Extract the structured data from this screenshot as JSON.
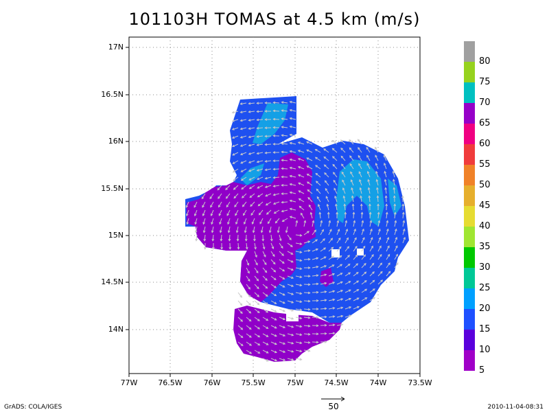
{
  "title": "101103H TOMAS at 4.5 km (m/s)",
  "y_axis_labels": [
    "17N",
    "16.5N",
    "16N",
    "15.5N",
    "15N",
    "14.5N",
    "14N"
  ],
  "x_axis_labels": [
    "77W",
    "76.5W",
    "76W",
    "75.5W",
    "75W",
    "74.5W",
    "74W",
    "73.5W"
  ],
  "colorbar": {
    "labels": [
      "80",
      "75",
      "70",
      "65",
      "60",
      "55",
      "50",
      "45",
      "40",
      "35",
      "30",
      "25",
      "20",
      "15",
      "10",
      "5"
    ],
    "colors": [
      "#a0a0a0",
      "#96d21e",
      "#00c0c0",
      "#9600c8",
      "#f00082",
      "#f03c3c",
      "#f08228",
      "#e6af2d",
      "#e6dc32",
      "#a0e632",
      "#00c800",
      "#00c896",
      "#00a0ff",
      "#1e50ff",
      "#5a00dc",
      "#a000c8"
    ]
  },
  "vector_reference": {
    "label": "50"
  },
  "footer": {
    "left": "GrADS: COLA/IGES",
    "right": "2010-11-04-08:31"
  },
  "colors": {
    "purple": "#9000c8",
    "blue": "#1e50f0",
    "cyan": "#14a0e6",
    "arrow": "#c8c8c8"
  }
}
